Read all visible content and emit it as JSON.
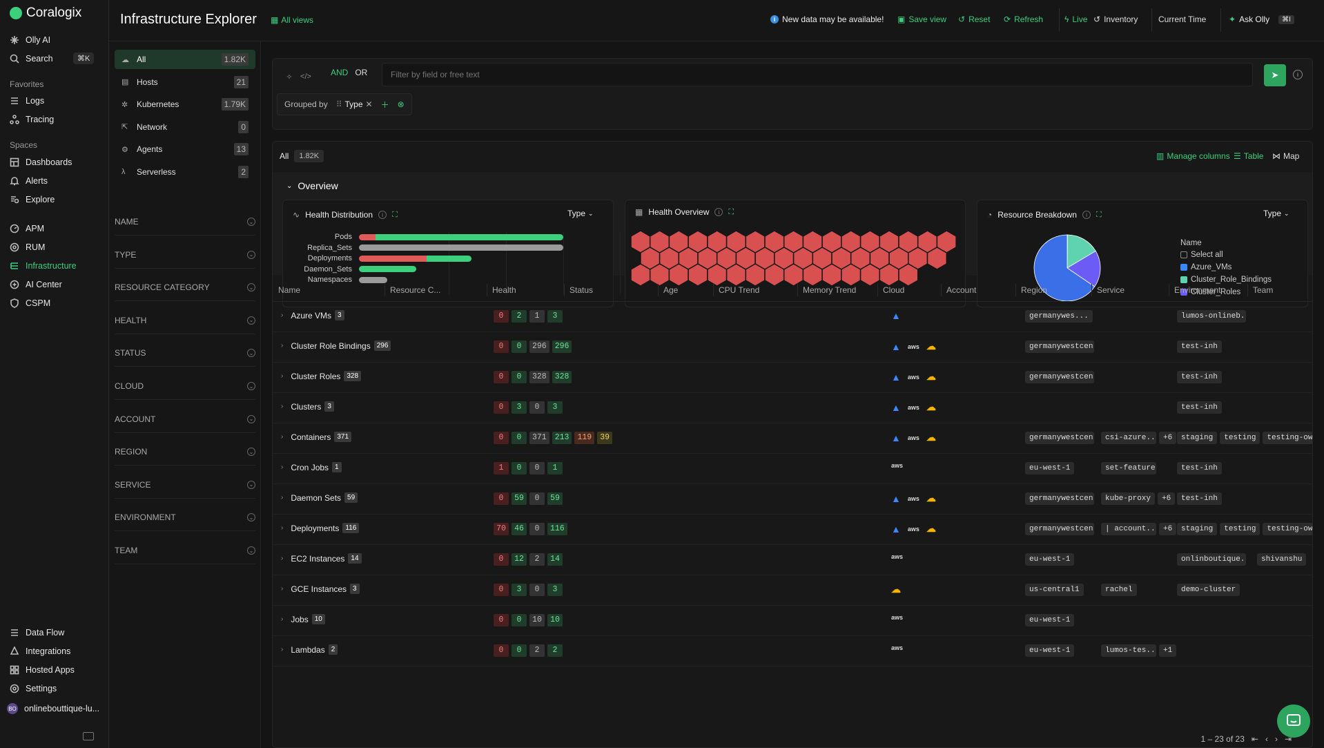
{
  "brand": {
    "name": "Coralogix"
  },
  "nav": {
    "olly": "Olly AI",
    "search": "Search",
    "search_kbd": "⌘K",
    "favorites_label": "Favorites",
    "logs": "Logs",
    "tracing": "Tracing",
    "spaces_label": "Spaces",
    "dashboards": "Dashboards",
    "alerts": "Alerts",
    "explore": "Explore",
    "apm": "APM",
    "rum": "RUM",
    "infrastructure": "Infrastructure",
    "ai_center": "AI Center",
    "cspm": "CSPM",
    "data_flow": "Data Flow",
    "integrations": "Integrations",
    "hosted_apps": "Hosted Apps",
    "settings": "Settings",
    "account": "onlinebouttique-lu...",
    "account_initials": "BO"
  },
  "topbar": {
    "title": "Infrastructure Explorer",
    "all_views": "All views",
    "notice": "New data may be available!",
    "save_view": "Save view",
    "reset": "Reset",
    "refresh": "Refresh",
    "live": "Live",
    "inventory": "Inventory",
    "current_time": "Current Time",
    "ask_olly": "Ask Olly",
    "ask_kbd": "⌘I"
  },
  "types": [
    {
      "label": "All",
      "count": "1.82K",
      "icon": "cloud-icon"
    },
    {
      "label": "Hosts",
      "count": "21",
      "icon": "host-icon"
    },
    {
      "label": "Kubernetes",
      "count": "1.79K",
      "icon": "kubernetes-icon"
    },
    {
      "label": "Network",
      "count": "0",
      "icon": "network-icon"
    },
    {
      "label": "Agents",
      "count": "13",
      "icon": "agent-icon"
    },
    {
      "label": "Serverless",
      "count": "2",
      "icon": "lambda-icon"
    }
  ],
  "filters": [
    "NAME",
    "TYPE",
    "RESOURCE CATEGORY",
    "HEALTH",
    "STATUS",
    "CLOUD",
    "ACCOUNT",
    "REGION",
    "SERVICE",
    "ENVIRONMENT",
    "TEAM"
  ],
  "query": {
    "and": "AND",
    "or": "OR",
    "placeholder": "Filter by field or free text",
    "grouped_by": "Grouped by",
    "group_chip": "Type"
  },
  "table": {
    "all_label": "All",
    "all_count": "1.82K",
    "manage_columns": "Manage columns",
    "table_view": "Table",
    "map_view": "Map",
    "overview": "Overview",
    "columns": [
      "Name",
      "Resource C...",
      "Health",
      "Status",
      "Age",
      "CPU Trend",
      "Memory Trend",
      "Cloud",
      "Account",
      "Region",
      "Service",
      "Environment",
      "Team"
    ],
    "pager": "1 – 23 of 23"
  },
  "cards": {
    "health_distribution": "Health Distribution",
    "health_overview": "Health Overview",
    "resource_breakdown": "Resource Breakdown",
    "dd_type": "Type",
    "legend_title": "Name",
    "select_all": "Select all"
  },
  "chart_data": [
    {
      "type": "bar",
      "title": "Health Distribution",
      "categories": [
        "Pods",
        "Replica_Sets",
        "Deployments",
        "Daemon_Sets",
        "Namespaces"
      ],
      "series": [
        {
          "values": [
            0.08,
            0,
            0.33,
            0,
            0
          ]
        },
        {
          "values": [
            0.92,
            0,
            0.22,
            0.28,
            0
          ]
        },
        {
          "values": [
            0,
            1,
            0.0,
            0,
            0.14
          ]
        }
      ]
    },
    {
      "type": "pie",
      "title": "Resource Breakdown",
      "slices": [
        {
          "label": "Azure_VMs",
          "value": 3,
          "color": "#3a86ff"
        },
        {
          "label": "Cluster_Role_Bindings",
          "value": 296,
          "color": "#5fd3b0"
        },
        {
          "label": "Cluster_Roles",
          "value": 328,
          "color": "#6b5cf6"
        },
        {
          "label": "Other",
          "value": 1190,
          "color": "#3a6fe8"
        }
      ]
    }
  ],
  "legend": [
    {
      "label": "Azure_VMs",
      "color": "#3a86ff"
    },
    {
      "label": "Cluster_Role_Bindings",
      "color": "#5fd3b0"
    },
    {
      "label": "Cluster_Roles",
      "color": "#6b5cf6"
    }
  ],
  "rows": [
    {
      "name": "Azure VMs",
      "count": "3",
      "h": [
        "0",
        "2",
        "1",
        "3"
      ],
      "cloud": [
        "azure"
      ],
      "region": "germanywes...",
      "service": [],
      "env": [
        "lumos-onlineb..."
      ],
      "team": ""
    },
    {
      "name": "Cluster Role Bindings",
      "count": "296",
      "h": [
        "0",
        "0",
        "296",
        "296"
      ],
      "cloud": [
        "azure",
        "aws",
        "gcp"
      ],
      "region": "germanywestcen",
      "service": [],
      "env": [
        "test-inh"
      ],
      "team": ""
    },
    {
      "name": "Cluster Roles",
      "count": "328",
      "h": [
        "0",
        "0",
        "328",
        "328"
      ],
      "cloud": [
        "azure",
        "aws",
        "gcp"
      ],
      "region": "germanywestcen",
      "service": [],
      "env": [
        "test-inh"
      ],
      "team": ""
    },
    {
      "name": "Clusters",
      "count": "3",
      "h": [
        "0",
        "3",
        "0",
        "3"
      ],
      "cloud": [
        "azure",
        "aws",
        "gcp"
      ],
      "region": "",
      "service": [],
      "env": [
        "test-inh"
      ],
      "team": ""
    },
    {
      "name": "Containers",
      "count": "371",
      "h": [
        "0",
        "0",
        "371",
        "213",
        "119",
        "39"
      ],
      "cloud": [
        "azure",
        "aws",
        "gcp"
      ],
      "region": "germanywestcen",
      "service": [
        "csi-azure...",
        "+6"
      ],
      "env": [
        "staging",
        "testing",
        "testing-owne"
      ],
      "team": ""
    },
    {
      "name": "Cron Jobs",
      "count": "1",
      "h": [
        "1",
        "0",
        "0",
        "1"
      ],
      "cloud": [
        "aws"
      ],
      "region": "eu-west-1",
      "service": [
        "set-feature-f..."
      ],
      "env": [
        "test-inh"
      ],
      "team": ""
    },
    {
      "name": "Daemon Sets",
      "count": "59",
      "h": [
        "0",
        "59",
        "0",
        "59"
      ],
      "cloud": [
        "azure",
        "aws",
        "gcp"
      ],
      "region": "germanywestcen",
      "service": [
        "kube-proxy",
        "+6"
      ],
      "env": [
        "test-inh"
      ],
      "team": ""
    },
    {
      "name": "Deployments",
      "count": "116",
      "h": [
        "70",
        "46",
        "0",
        "116"
      ],
      "cloud": [
        "azure",
        "aws",
        "gcp"
      ],
      "region": "germanywestcen",
      "service": [
        "| account...",
        "+6"
      ],
      "env": [
        "staging",
        "testing",
        "testing-owne"
      ],
      "team": ""
    },
    {
      "name": "EC2 Instances",
      "count": "14",
      "h": [
        "0",
        "12",
        "2",
        "14"
      ],
      "cloud": [
        "aws"
      ],
      "region": "eu-west-1",
      "service": [],
      "env": [
        "onlinboutique..."
      ],
      "team": "shivanshu"
    },
    {
      "name": "GCE Instances",
      "count": "3",
      "h": [
        "0",
        "3",
        "0",
        "3"
      ],
      "cloud": [
        "gcp"
      ],
      "region": "us-central1",
      "service": [
        "rachel"
      ],
      "env": [
        "demo-cluster"
      ],
      "team": ""
    },
    {
      "name": "Jobs",
      "count": "10",
      "h": [
        "0",
        "0",
        "10",
        "10"
      ],
      "cloud": [
        "aws"
      ],
      "region": "eu-west-1",
      "service": [],
      "env": [],
      "team": ""
    },
    {
      "name": "Lambdas",
      "count": "2",
      "h": [
        "0",
        "0",
        "2",
        "2"
      ],
      "cloud": [
        "aws"
      ],
      "region": "eu-west-1",
      "service": [
        "lumos-tes...",
        "+1"
      ],
      "env": [],
      "team": ""
    }
  ]
}
